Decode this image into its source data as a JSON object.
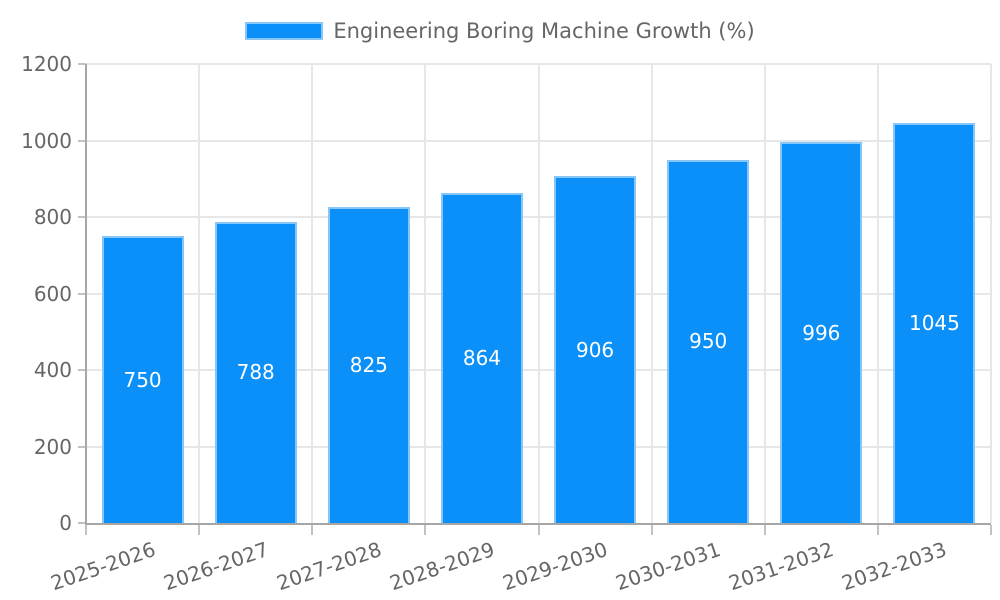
{
  "chart_data": {
    "type": "bar",
    "title": "Engineering Boring Machine Growth (%)",
    "legend_position": "top",
    "categories": [
      "2025-2026",
      "2026-2027",
      "2027-2028",
      "2028-2029",
      "2029-2030",
      "2030-2031",
      "2031-2032",
      "2032-2033"
    ],
    "values": [
      750,
      788,
      825,
      864,
      906,
      950,
      996,
      1045
    ],
    "value_labels": [
      "750",
      "788",
      "825",
      "864",
      "906",
      "950",
      "996",
      "1045"
    ],
    "xlabel": "",
    "ylabel": "",
    "ylim": [
      0,
      1200
    ],
    "y_ticks": [
      0,
      200,
      400,
      600,
      800,
      1000,
      1200
    ],
    "grid": true,
    "x_label_rotation_deg": -19,
    "colors": {
      "bar_fill": "#0a90f8",
      "bar_border": "#87c6f8",
      "value_label": "#ffffff",
      "axis_text": "#666666",
      "gridline": "#e7e7e7",
      "axis_line": "#a6a6a6",
      "tick_mark": "#c2c2c2",
      "background": "#ffffff"
    }
  }
}
